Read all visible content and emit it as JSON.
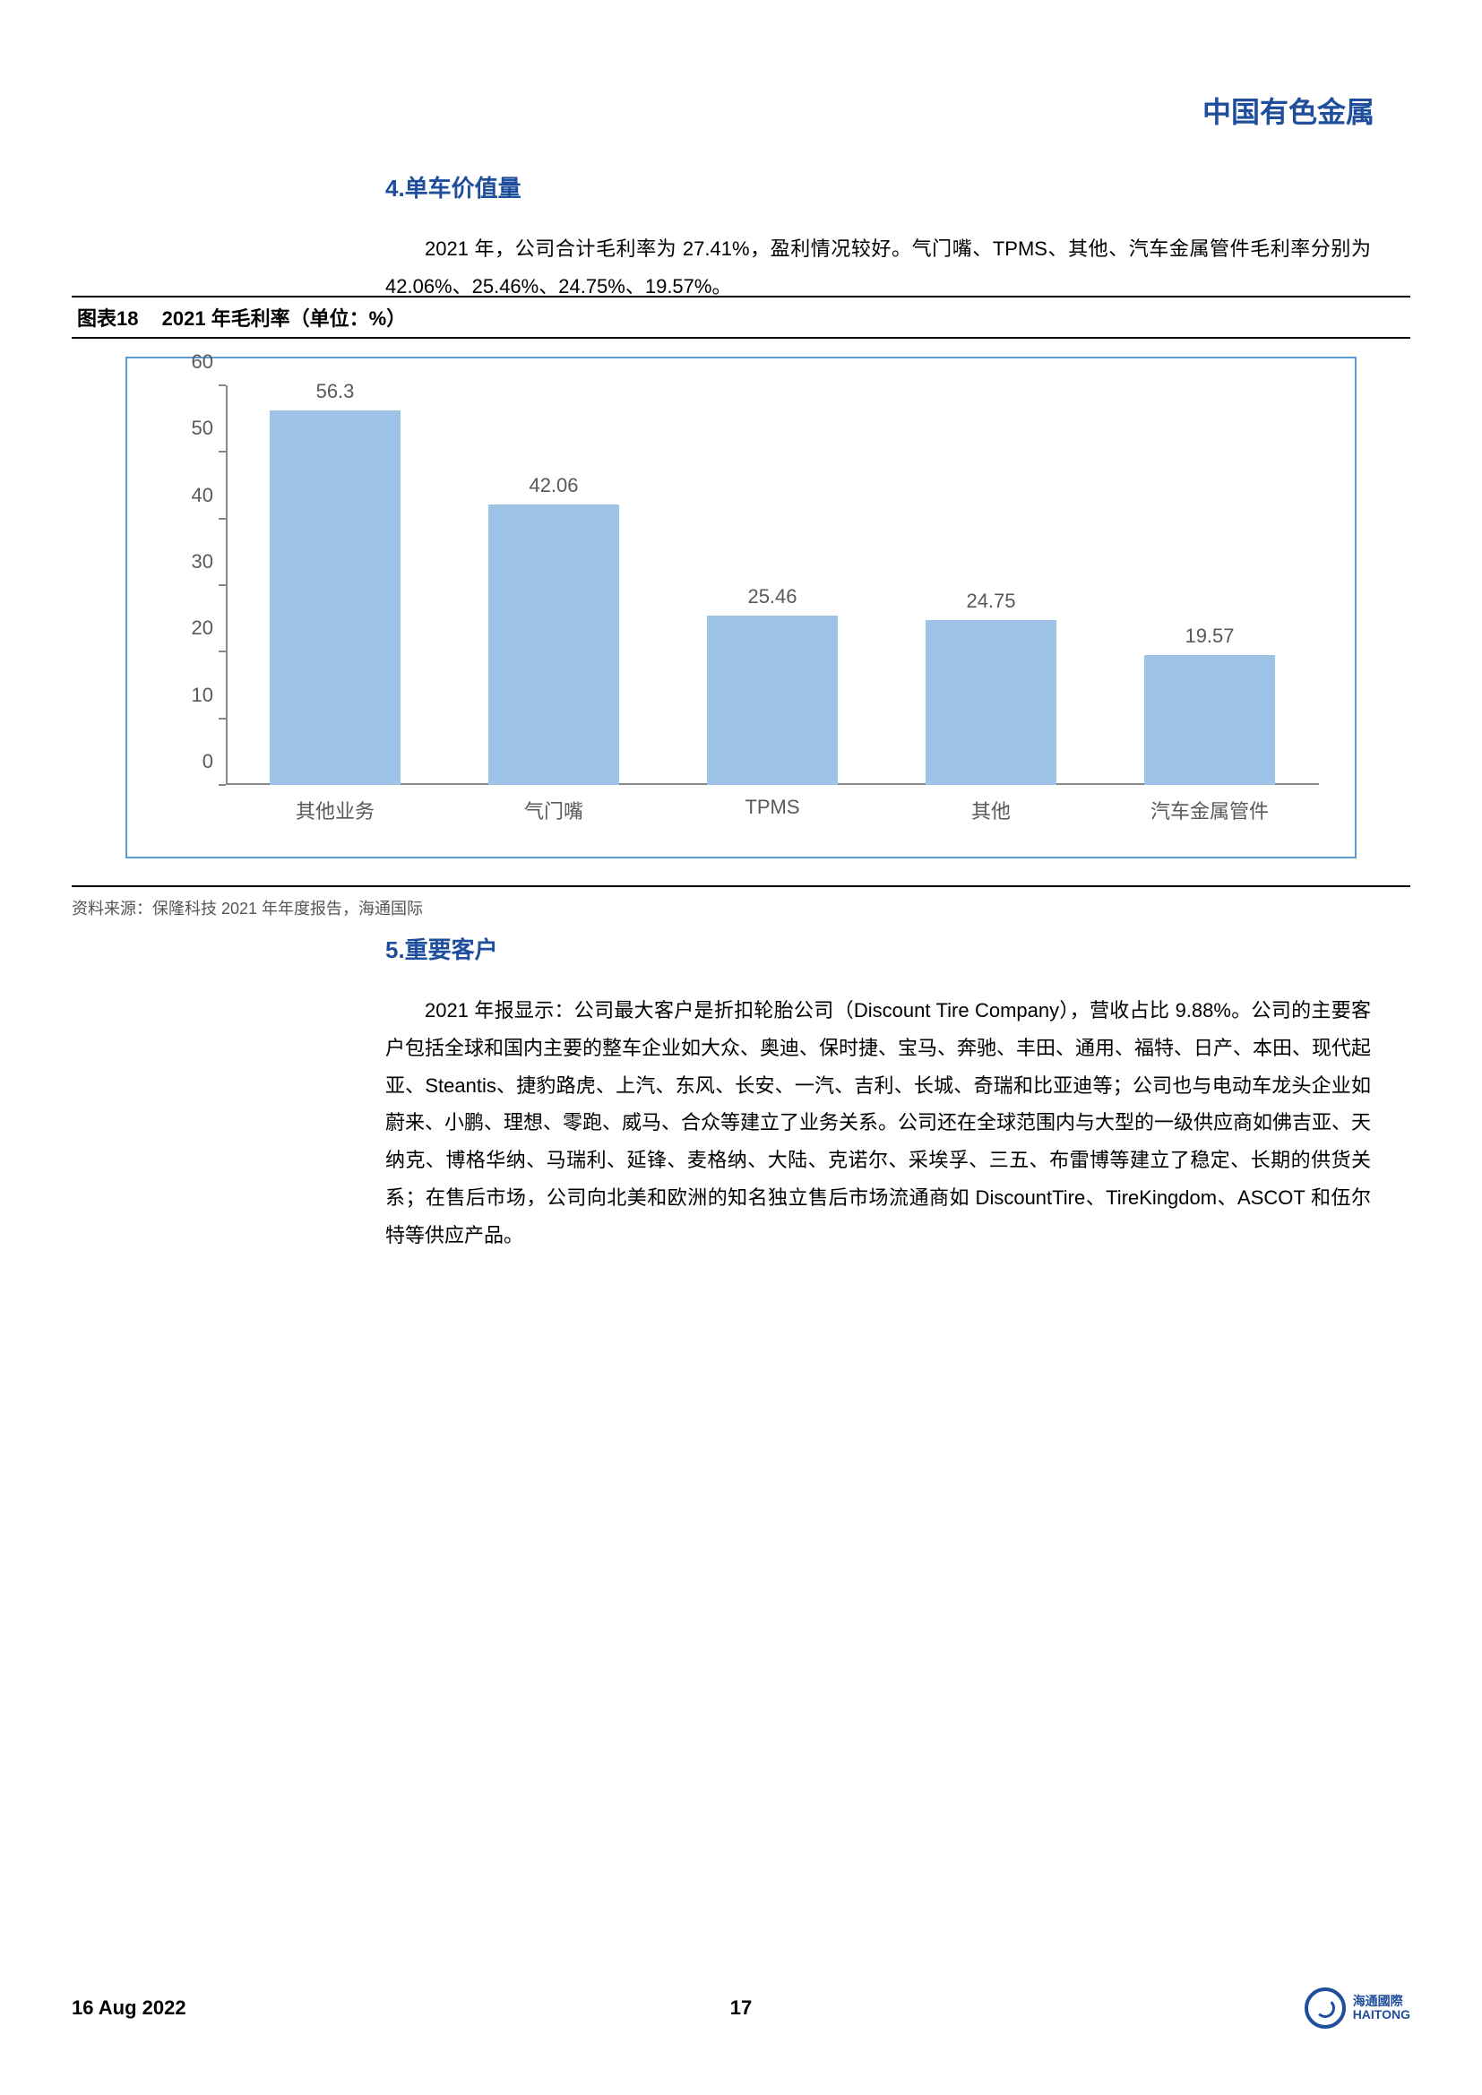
{
  "header": {
    "title": "中国有色金属"
  },
  "section4": {
    "title": "4.单车价值量",
    "body": "2021 年，公司合计毛利率为 27.41%，盈利情况较好。气门嘴、TPMS、其他、汽车金属管件毛利率分别为 42.06%、25.46%、24.75%、19.57%。"
  },
  "chart": {
    "caption_prefix": "图表18",
    "caption": "2021 年毛利率（单位：%）",
    "type": "bar",
    "categories": [
      "其他业务",
      "气门嘴",
      "TPMS",
      "其他",
      "汽车金属管件"
    ],
    "values": [
      56.3,
      42.06,
      25.46,
      24.75,
      19.57
    ],
    "value_labels": [
      "56.3",
      "42.06",
      "25.46",
      "24.75",
      "19.57"
    ],
    "bar_color": "#9dc3e6",
    "border_color": "#5b9bd5",
    "axis_color": "#888888",
    "label_color": "#595959",
    "ylim": [
      0,
      60
    ],
    "ytick_step": 10,
    "yticks": [
      0,
      10,
      20,
      30,
      40,
      50,
      60
    ],
    "bar_width_pct": 12,
    "label_fontsize": 22,
    "background_color": "#ffffff",
    "source": "资料来源：保隆科技 2021 年年度报告，海通国际"
  },
  "section5": {
    "title": "5.重要客户",
    "body": "2021 年报显示：公司最大客户是折扣轮胎公司（Discount Tire Company），营收占比 9.88%。公司的主要客户包括全球和国内主要的整车企业如大众、奥迪、保时捷、宝马、奔驰、丰田、通用、福特、日产、本田、现代起亚、Steantis、捷豹路虎、上汽、东风、长安、一汽、吉利、长城、奇瑞和比亚迪等；公司也与电动车龙头企业如蔚来、小鹏、理想、零跑、威马、合众等建立了业务关系。公司还在全球范围内与大型的一级供应商如佛吉亚、天纳克、博格华纳、马瑞利、延锋、麦格纳、大陆、克诺尔、采埃孚、三五、布雷博等建立了稳定、长期的供货关系；在售后市场，公司向北美和欧洲的知名独立售后市场流通商如 DiscountTire、TireKingdom、ASCOT 和伍尔特等供应产品。"
  },
  "footer": {
    "date": "16 Aug 2022",
    "page": "17",
    "logo_cn": "海通國際",
    "logo_en": "HAITONG"
  }
}
